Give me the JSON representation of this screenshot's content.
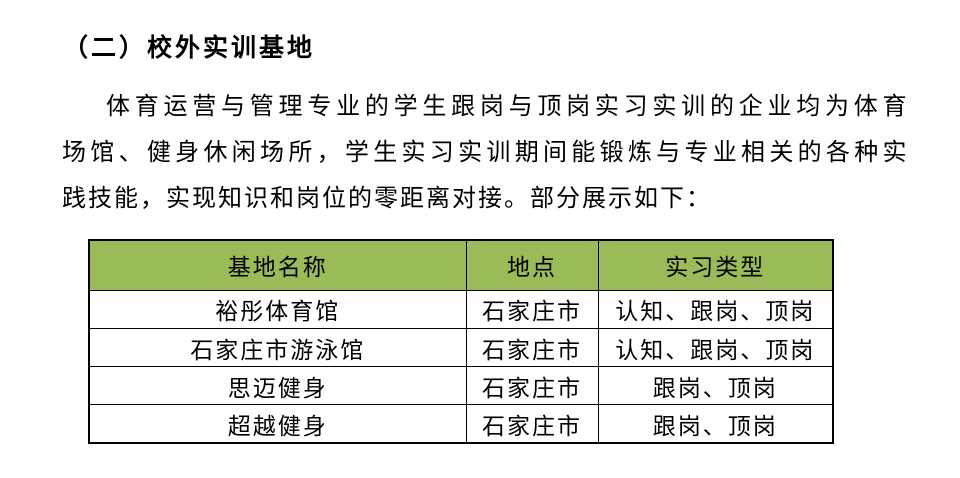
{
  "page": {
    "heading": "（二）校外实训基地",
    "paragraph_lines": {
      "line1": "体育运营与管理专业的学生跟岗与顶岗实习实训的企业均为体育",
      "line2": "场馆、健身休闲场所，学生实习实训期间能锻炼与专业相关的各种实",
      "line3": "践技能，实现知识和岗位的零距离对接。部分展示如下："
    }
  },
  "table": {
    "header_bg": "#9BBB59",
    "border_color": "#000000",
    "headers": [
      "基地名称",
      "地点",
      "实习类型"
    ],
    "rows": [
      [
        "裕彤体育馆",
        "石家庄市",
        "认知、跟岗、顶岗"
      ],
      [
        "石家庄市游泳馆",
        "石家庄市",
        "认知、跟岗、顶岗"
      ],
      [
        "思迈健身",
        "石家庄市",
        "跟岗、顶岗"
      ],
      [
        "超越健身",
        "石家庄市",
        "跟岗、顶岗"
      ]
    ]
  }
}
